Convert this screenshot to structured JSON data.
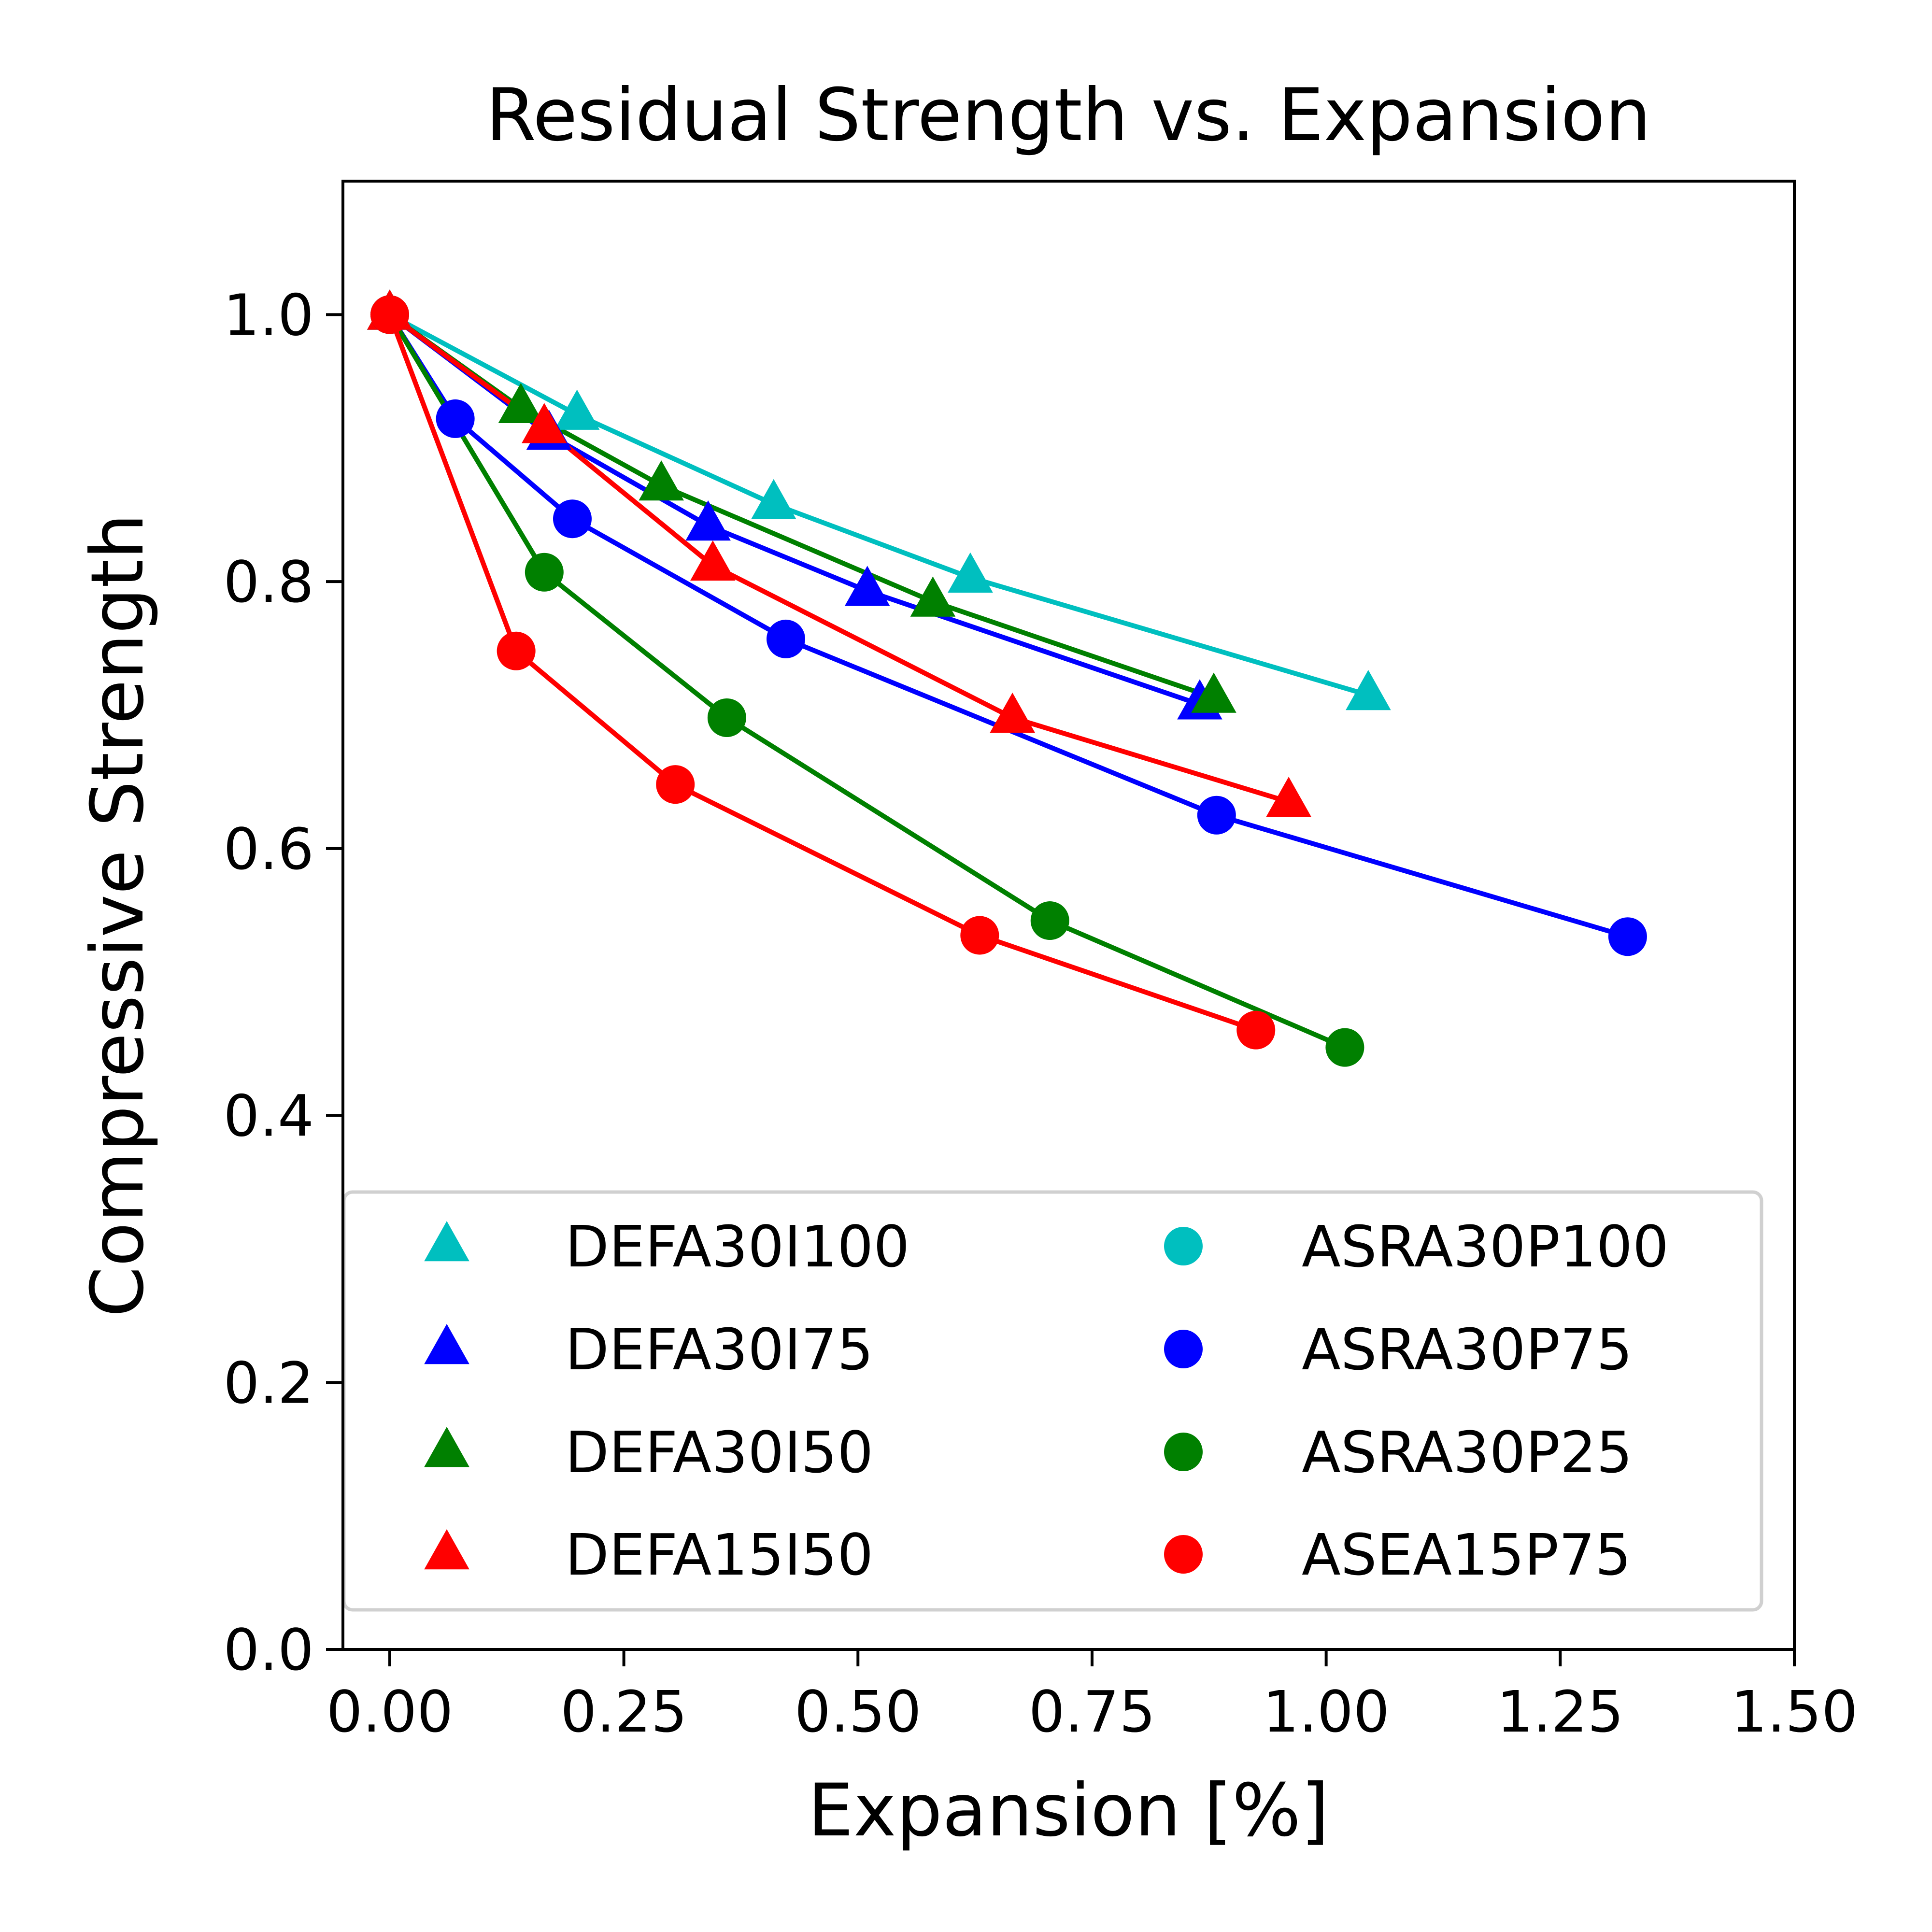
{
  "chart_data": {
    "type": "line",
    "title": "Residual Strength vs. Expansion",
    "xlabel": "Expansion [%]",
    "ylabel": "Compressive Strength",
    "xlim": [
      -0.05,
      1.5
    ],
    "ylim": [
      0.0,
      1.1
    ],
    "xticks": [
      0.0,
      0.25,
      0.5,
      0.75,
      1.0,
      1.25,
      1.5
    ],
    "xtick_labels": [
      "0.00",
      "0.25",
      "0.50",
      "0.75",
      "1.00",
      "1.25",
      "1.50"
    ],
    "yticks": [
      0.0,
      0.2,
      0.4,
      0.6,
      0.8,
      1.0
    ],
    "ytick_labels": [
      "0.0",
      "0.2",
      "0.4",
      "0.6",
      "0.8",
      "1.0"
    ],
    "grid": false,
    "legend_position": "lower-left",
    "legend_columns": 2,
    "series": [
      {
        "name": "DEFA30I100",
        "marker": "triangle",
        "color": "#00bfbf",
        "x": [
          0.0,
          0.2,
          0.41,
          0.62,
          1.045
        ],
        "y": [
          1.0,
          0.925,
          0.858,
          0.803,
          0.715
        ]
      },
      {
        "name": "DEFA30I75",
        "marker": "triangle",
        "color": "#0000ff",
        "x": [
          0.0,
          0.17,
          0.34,
          0.51,
          0.865
        ],
        "y": [
          1.0,
          0.91,
          0.842,
          0.793,
          0.708
        ]
      },
      {
        "name": "DEFA30I50",
        "marker": "triangle",
        "color": "#008000",
        "x": [
          0.0,
          0.14,
          0.29,
          0.58,
          0.88
        ],
        "y": [
          1.0,
          0.93,
          0.872,
          0.785,
          0.713
        ]
      },
      {
        "name": "DEFA15I50",
        "marker": "triangle",
        "color": "#ff0000",
        "x": [
          0.0,
          0.165,
          0.345,
          0.665,
          0.96
        ],
        "y": [
          1.0,
          0.915,
          0.812,
          0.698,
          0.635
        ]
      },
      {
        "name": "ASRA30P100",
        "marker": "circle",
        "color": "#00bfbf",
        "x": [],
        "y": []
      },
      {
        "name": "ASRA30P75",
        "marker": "circle",
        "color": "#0000ff",
        "x": [
          0.0,
          0.07,
          0.195,
          0.423,
          0.883,
          1.322
        ],
        "y": [
          1.0,
          0.922,
          0.847,
          0.757,
          0.625,
          0.534
        ]
      },
      {
        "name": "ASRA30P25",
        "marker": "circle",
        "color": "#008000",
        "x": [
          0.0,
          0.165,
          0.36,
          0.705,
          1.02
        ],
        "y": [
          1.0,
          0.807,
          0.698,
          0.546,
          0.451
        ]
      },
      {
        "name": "ASEA15P75",
        "marker": "circle",
        "color": "#ff0000",
        "x": [
          0.0,
          0.135,
          0.305,
          0.63,
          0.925
        ],
        "y": [
          1.0,
          0.748,
          0.648,
          0.535,
          0.464
        ]
      }
    ]
  }
}
